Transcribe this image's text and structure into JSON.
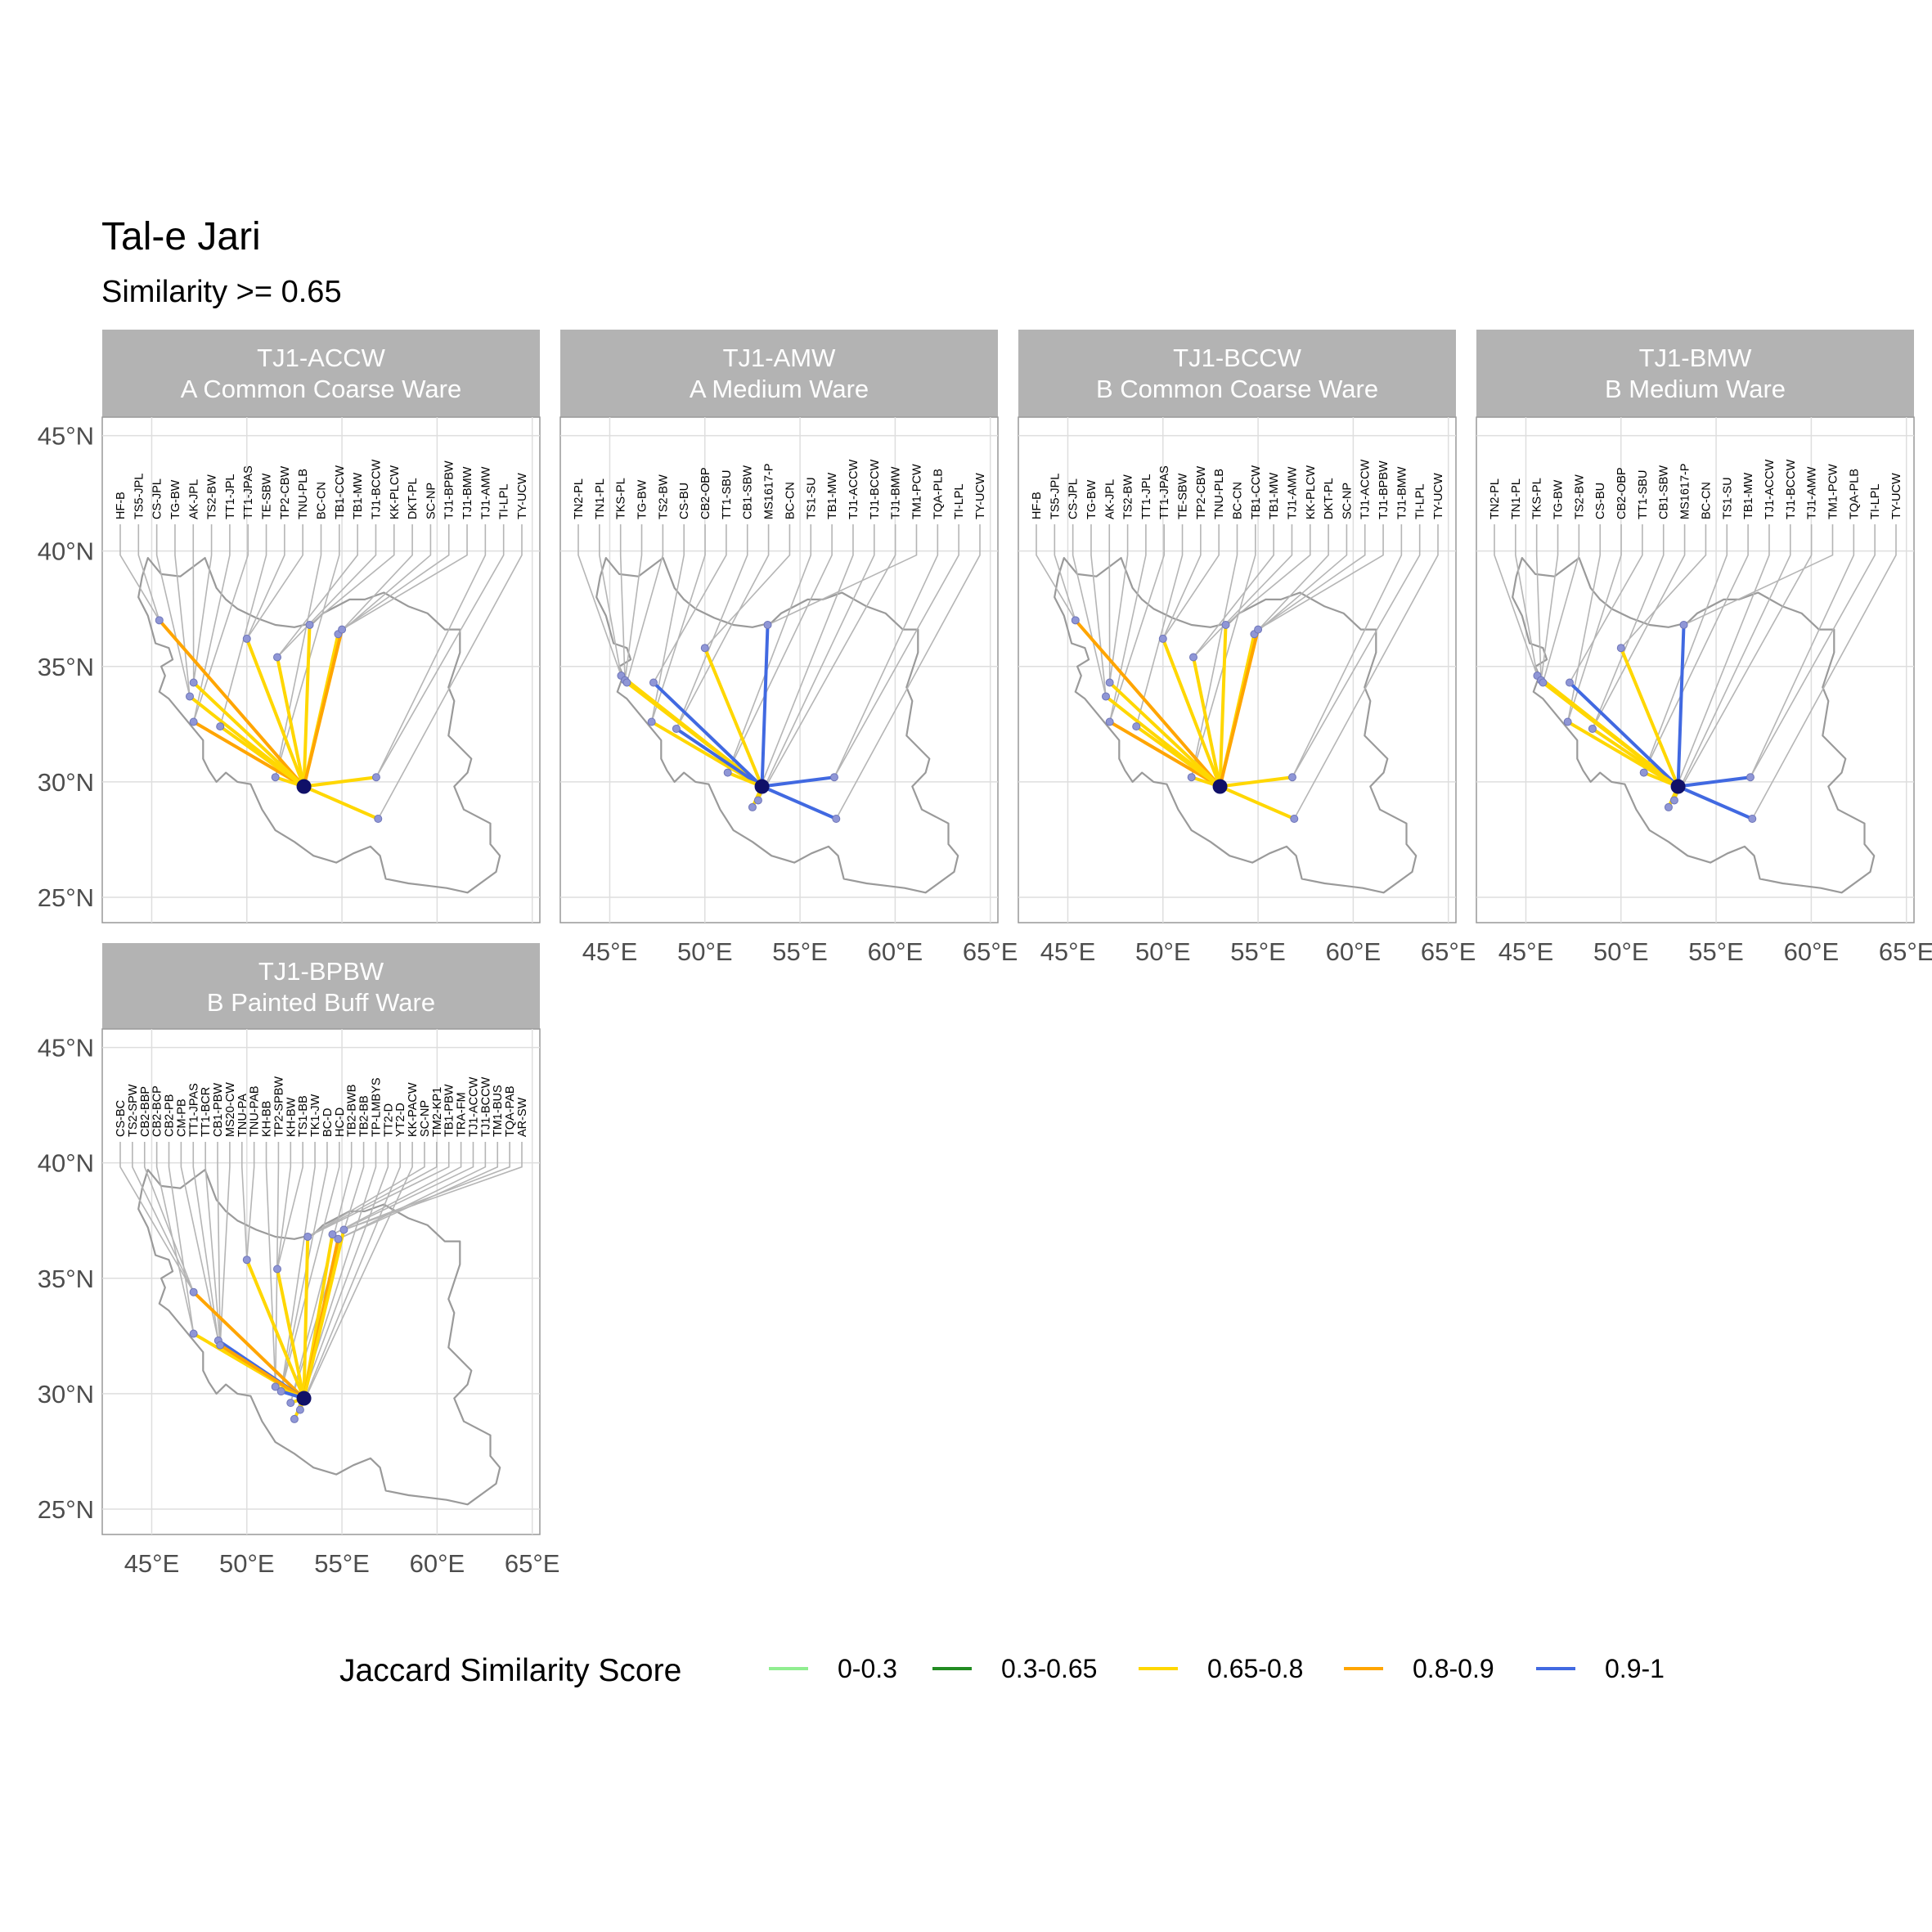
{
  "title": "Tal-e Jari",
  "subtitle": "Similarity >= 0.65",
  "axes": {
    "x_ticks": [
      "45°E",
      "50°E",
      "55°E",
      "60°E",
      "65°E"
    ],
    "x_values": [
      45,
      50,
      55,
      60,
      65
    ],
    "y_ticks": [
      "45°N",
      "40°N",
      "35°N",
      "30°N",
      "25°N"
    ],
    "y_values": [
      45,
      40,
      35,
      30,
      25
    ],
    "lon_range": [
      42.4,
      65.4
    ],
    "lat_range": [
      23.9,
      45.8
    ]
  },
  "legend": {
    "title": "Jaccard Similarity Score",
    "items": [
      {
        "label": "0-0.3",
        "color": "#90ee90"
      },
      {
        "label": "0.3-0.65",
        "color": "#228b22"
      },
      {
        "label": "0.65-0.8",
        "color": "#ffd700"
      },
      {
        "label": "0.8-0.9",
        "color": "#ffa500"
      },
      {
        "label": "0.9-1",
        "color": "#4169e1"
      }
    ]
  },
  "chart_data": {
    "type": "map",
    "title": "Tal-e Jari",
    "subtitle": "Similarity >= 0.65",
    "center_site": {
      "lon": 53.0,
      "lat": 29.8
    },
    "panels": [
      {
        "code": "TJ1-ACCW",
        "name": "A Common Coarse Ware",
        "labels": [
          "HF-B",
          "TS5-JPL",
          "CS-JPL",
          "TG-BW",
          "AK-JPL",
          "TS2-BW",
          "TT1-JPL",
          "TT1-JPAS",
          "TE-SBW",
          "TP2-CBW",
          "TNU-PLB",
          "BC-CN",
          "TB1-CCW",
          "TB1-MW",
          "TJ1-BCCW",
          "KK-PLCW",
          "DKT-PL",
          "SC-NP",
          "TJ1-BPBW",
          "TJ1-BMW",
          "TJ1-AMW",
          "TI-LPL",
          "TY-UCW"
        ],
        "sites": [
          {
            "lon": 45.4,
            "lat": 37.0,
            "score": "0.8-0.9"
          },
          {
            "lon": 47.2,
            "lat": 34.3,
            "score": "0.65-0.8"
          },
          {
            "lon": 47.0,
            "lat": 33.7,
            "score": "0.65-0.8"
          },
          {
            "lon": 47.2,
            "lat": 32.6,
            "score": "0.8-0.9"
          },
          {
            "lon": 48.6,
            "lat": 32.4,
            "score": "0.65-0.8"
          },
          {
            "lon": 50.0,
            "lat": 36.2,
            "score": "0.65-0.8"
          },
          {
            "lon": 51.6,
            "lat": 35.4,
            "score": "0.65-0.8"
          },
          {
            "lon": 53.3,
            "lat": 36.8,
            "score": "0.65-0.8"
          },
          {
            "lon": 54.8,
            "lat": 36.4,
            "score": "0.65-0.8"
          },
          {
            "lon": 55.0,
            "lat": 36.6,
            "score": "0.8-0.9"
          },
          {
            "lon": 51.5,
            "lat": 30.2,
            "score": "0.65-0.8"
          },
          {
            "lon": 56.8,
            "lat": 30.2,
            "score": "0.65-0.8"
          },
          {
            "lon": 56.9,
            "lat": 28.4,
            "score": "0.65-0.8"
          }
        ]
      },
      {
        "code": "TJ1-AMW",
        "name": "A Medium Ware",
        "labels": [
          "TN2-PL",
          "TN1-PL",
          "TKS-PL",
          "TG-BW",
          "TS2-BW",
          "CS-BU",
          "CB2-OBP",
          "TT1-SBU",
          "CB1-SBW",
          "MS1617-P",
          "BC-CN",
          "TS1-SU",
          "TB1-MW",
          "TJ1-ACCW",
          "TJ1-BCCW",
          "TJ1-BMW",
          "TM1-PCW",
          "TQA-PLB",
          "TI-LPL",
          "TY-UCW"
        ],
        "sites": [
          {
            "lon": 45.6,
            "lat": 34.6,
            "score": "0.65-0.8"
          },
          {
            "lon": 45.8,
            "lat": 34.4,
            "score": "0.65-0.8"
          },
          {
            "lon": 45.9,
            "lat": 34.3,
            "score": "0.65-0.8"
          },
          {
            "lon": 47.3,
            "lat": 34.3,
            "score": "0.9-1"
          },
          {
            "lon": 47.2,
            "lat": 32.6,
            "score": "0.65-0.8"
          },
          {
            "lon": 48.5,
            "lat": 32.3,
            "score": "0.9-1"
          },
          {
            "lon": 50.0,
            "lat": 35.8,
            "score": "0.65-0.8"
          },
          {
            "lon": 51.2,
            "lat": 30.4,
            "score": "0.65-0.8"
          },
          {
            "lon": 53.3,
            "lat": 36.8,
            "score": "0.9-1"
          },
          {
            "lon": 52.8,
            "lat": 29.2,
            "score": "0.65-0.8"
          },
          {
            "lon": 52.5,
            "lat": 28.9,
            "score": "0.65-0.8"
          },
          {
            "lon": 56.8,
            "lat": 30.2,
            "score": "0.9-1"
          },
          {
            "lon": 56.9,
            "lat": 28.4,
            "score": "0.9-1"
          }
        ]
      },
      {
        "code": "TJ1-BCCW",
        "name": "B Common Coarse Ware",
        "labels": [
          "HF-B",
          "TS5-JPL",
          "CS-JPL",
          "TG-BW",
          "AK-JPL",
          "TS2-BW",
          "TT1-JPL",
          "TT1-JPAS",
          "TE-SBW",
          "TP2-CBW",
          "TNU-PLB",
          "BC-CN",
          "TB1-CCW",
          "TB1-MW",
          "TJ1-AMW",
          "KK-PLCW",
          "DKT-PL",
          "SC-NP",
          "TJ1-ACCW",
          "TJ1-BPBW",
          "TJ1-BMW",
          "TI-LPL",
          "TY-UCW"
        ],
        "sites": [
          {
            "lon": 45.4,
            "lat": 37.0,
            "score": "0.8-0.9"
          },
          {
            "lon": 47.2,
            "lat": 34.3,
            "score": "0.65-0.8"
          },
          {
            "lon": 47.0,
            "lat": 33.7,
            "score": "0.65-0.8"
          },
          {
            "lon": 47.2,
            "lat": 32.6,
            "score": "0.8-0.9"
          },
          {
            "lon": 48.6,
            "lat": 32.4,
            "score": "0.65-0.8"
          },
          {
            "lon": 50.0,
            "lat": 36.2,
            "score": "0.65-0.8"
          },
          {
            "lon": 51.6,
            "lat": 35.4,
            "score": "0.65-0.8"
          },
          {
            "lon": 53.3,
            "lat": 36.8,
            "score": "0.65-0.8"
          },
          {
            "lon": 54.8,
            "lat": 36.4,
            "score": "0.65-0.8"
          },
          {
            "lon": 55.0,
            "lat": 36.6,
            "score": "0.8-0.9"
          },
          {
            "lon": 51.5,
            "lat": 30.2,
            "score": "0.65-0.8"
          },
          {
            "lon": 56.8,
            "lat": 30.2,
            "score": "0.65-0.8"
          },
          {
            "lon": 56.9,
            "lat": 28.4,
            "score": "0.65-0.8"
          }
        ]
      },
      {
        "code": "TJ1-BMW",
        "name": "B Medium Ware",
        "labels": [
          "TN2-PL",
          "TN1-PL",
          "TKS-PL",
          "TG-BW",
          "TS2-BW",
          "CS-BU",
          "CB2-OBP",
          "TT1-SBU",
          "CB1-SBW",
          "MS1617-P",
          "BC-CN",
          "TS1-SU",
          "TB1-MW",
          "TJ1-ACCW",
          "TJ1-BCCW",
          "TJ1-AMW",
          "TM1-PCW",
          "TQA-PLB",
          "TI-LPL",
          "TY-UCW"
        ],
        "sites": [
          {
            "lon": 45.6,
            "lat": 34.6,
            "score": "0.65-0.8"
          },
          {
            "lon": 45.8,
            "lat": 34.4,
            "score": "0.65-0.8"
          },
          {
            "lon": 45.9,
            "lat": 34.3,
            "score": "0.65-0.8"
          },
          {
            "lon": 47.3,
            "lat": 34.3,
            "score": "0.9-1"
          },
          {
            "lon": 47.2,
            "lat": 32.6,
            "score": "0.65-0.8"
          },
          {
            "lon": 48.5,
            "lat": 32.3,
            "score": "0.65-0.8"
          },
          {
            "lon": 50.0,
            "lat": 35.8,
            "score": "0.65-0.8"
          },
          {
            "lon": 51.2,
            "lat": 30.4,
            "score": "0.65-0.8"
          },
          {
            "lon": 53.3,
            "lat": 36.8,
            "score": "0.9-1"
          },
          {
            "lon": 52.8,
            "lat": 29.2,
            "score": "0.65-0.8"
          },
          {
            "lon": 52.5,
            "lat": 28.9,
            "score": "0.65-0.8"
          },
          {
            "lon": 56.8,
            "lat": 30.2,
            "score": "0.9-1"
          },
          {
            "lon": 56.9,
            "lat": 28.4,
            "score": "0.9-1"
          }
        ]
      },
      {
        "code": "TJ1-BPBW",
        "name": "B Painted Buff Ware",
        "labels": [
          "CS-BC",
          "TS2-SPW",
          "CB2-BBP",
          "CB2-BCP",
          "CB2-PB",
          "CM-PB",
          "TT1-JPAS",
          "TT1-BCR",
          "CB1-PBW",
          "MS20-CW",
          "TNU-PA",
          "TNU-PAB",
          "KH-BB",
          "TP2-SPBW",
          "KH-BW",
          "TS1-BB",
          "TK1-JW",
          "BC-D",
          "HC-D",
          "TB2-BWB",
          "TB2-BB",
          "TP-LMBYS",
          "TT2-D",
          "YT2-D",
          "KK-PACW",
          "SC-NP",
          "TM2-KP1",
          "TB1-PBW",
          "TRA-FM",
          "TJ1-ACCW",
          "TJ1-BCCW",
          "TM1-BUS",
          "TQA-PAB",
          "AR-SW"
        ],
        "sites": [
          {
            "lon": 47.2,
            "lat": 34.4,
            "score": "0.8-0.9"
          },
          {
            "lon": 47.2,
            "lat": 32.6,
            "score": "0.65-0.8"
          },
          {
            "lon": 48.5,
            "lat": 32.3,
            "score": "0.9-1"
          },
          {
            "lon": 48.6,
            "lat": 32.1,
            "score": "0.8-0.9"
          },
          {
            "lon": 50.0,
            "lat": 35.8,
            "score": "0.65-0.8"
          },
          {
            "lon": 51.6,
            "lat": 35.4,
            "score": "0.65-0.8"
          },
          {
            "lon": 51.5,
            "lat": 30.3,
            "score": "0.65-0.8"
          },
          {
            "lon": 51.8,
            "lat": 30.1,
            "score": "0.9-1"
          },
          {
            "lon": 52.3,
            "lat": 29.6,
            "score": "0.65-0.8"
          },
          {
            "lon": 52.5,
            "lat": 28.9,
            "score": "0.65-0.8"
          },
          {
            "lon": 53.2,
            "lat": 36.8,
            "score": "0.65-0.8"
          },
          {
            "lon": 54.5,
            "lat": 36.9,
            "score": "0.65-0.8"
          },
          {
            "lon": 54.8,
            "lat": 36.7,
            "score": "0.8-0.9"
          },
          {
            "lon": 55.1,
            "lat": 37.1,
            "score": "0.65-0.8"
          },
          {
            "lon": 52.8,
            "lat": 29.3,
            "score": "0.65-0.8"
          }
        ]
      }
    ]
  }
}
